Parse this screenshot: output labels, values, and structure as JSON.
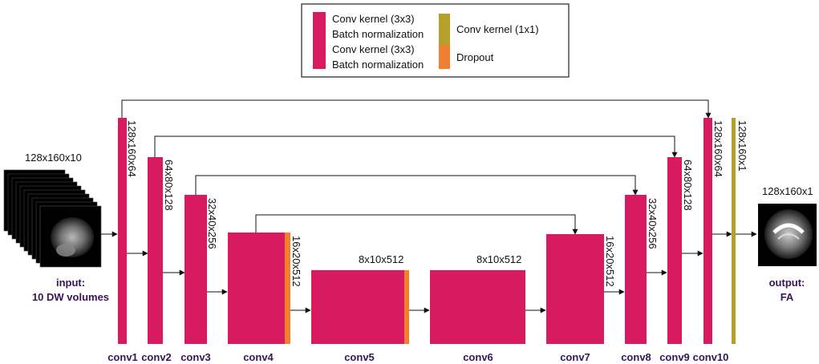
{
  "colors": {
    "conv_block": "#d81b60",
    "conv1x1": "#b5a02a",
    "dropout": "#f07f30",
    "label_dark": "#3a1458"
  },
  "legend": {
    "conv_bn_1": "Conv kernel (3x3)",
    "conv_bn_2": "Batch normalization",
    "conv_bn_3": "Conv kernel (3x3)",
    "conv_bn_4": "Batch normalization",
    "conv1x1": "Conv kernel (1x1)",
    "dropout": "Dropout"
  },
  "input": {
    "dims": "128x160x10",
    "label_1": "input:",
    "label_2": "10 DW volumes"
  },
  "output": {
    "dims": "128x160x1",
    "label_1": "output:",
    "label_2": "FA"
  },
  "layers": [
    {
      "id": "conv1",
      "label": "conv1",
      "dims": "128x160x64"
    },
    {
      "id": "conv2",
      "label": "conv2",
      "dims": "64x80x128"
    },
    {
      "id": "conv3",
      "label": "conv3",
      "dims": "32x40x256"
    },
    {
      "id": "conv4",
      "label": "conv4",
      "dims": "16x20x512"
    },
    {
      "id": "conv5",
      "label": "conv5",
      "dims": "8x10x512"
    },
    {
      "id": "conv6",
      "label": "conv6",
      "dims": "8x10x512"
    },
    {
      "id": "conv7",
      "label": "conv7",
      "dims": "16x20x512"
    },
    {
      "id": "conv8",
      "label": "conv8",
      "dims": "32x40x256"
    },
    {
      "id": "conv9",
      "label": "conv9",
      "dims": "64x80x128"
    },
    {
      "id": "conv10",
      "label": "conv10",
      "dims": "128x160x64"
    },
    {
      "id": "final",
      "label": "",
      "dims": "128x160x1"
    }
  ]
}
